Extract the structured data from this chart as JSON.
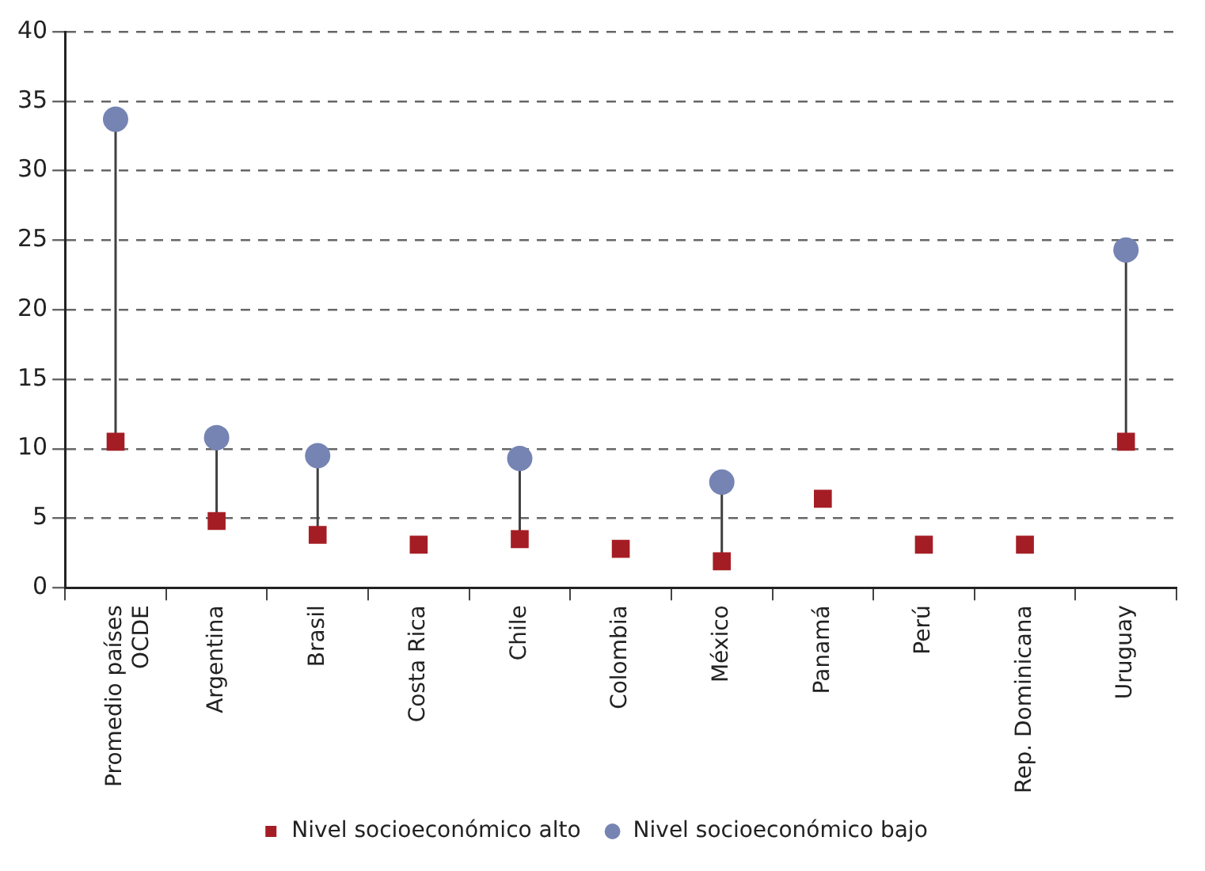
{
  "chart_data": {
    "type": "scatter",
    "categories": [
      "Promedio países OCDE",
      "Argentina",
      "Brasil",
      "Costa Rica",
      "Chile",
      "Colombia",
      "México",
      "Panamá",
      "Perú",
      "Rep. Dominicana",
      "Uruguay"
    ],
    "series": [
      {
        "name": "Nivel socioeconómico alto",
        "color": "#a51d24",
        "marker": "square",
        "values": [
          10.5,
          4.8,
          3.8,
          3.1,
          3.5,
          2.8,
          1.9,
          6.4,
          3.1,
          3.1,
          10.5
        ]
      },
      {
        "name": "Nivel socioeconómico bajo",
        "color": "#7584b3",
        "marker": "circle",
        "values": [
          33.7,
          10.8,
          9.5,
          null,
          9.3,
          null,
          7.6,
          null,
          null,
          null,
          24.3
        ]
      }
    ],
    "ylim": [
      0,
      40
    ],
    "yticks": [
      0,
      5,
      10,
      15,
      20,
      25,
      30,
      35,
      40
    ],
    "grid": "y",
    "legend": "bottom"
  }
}
